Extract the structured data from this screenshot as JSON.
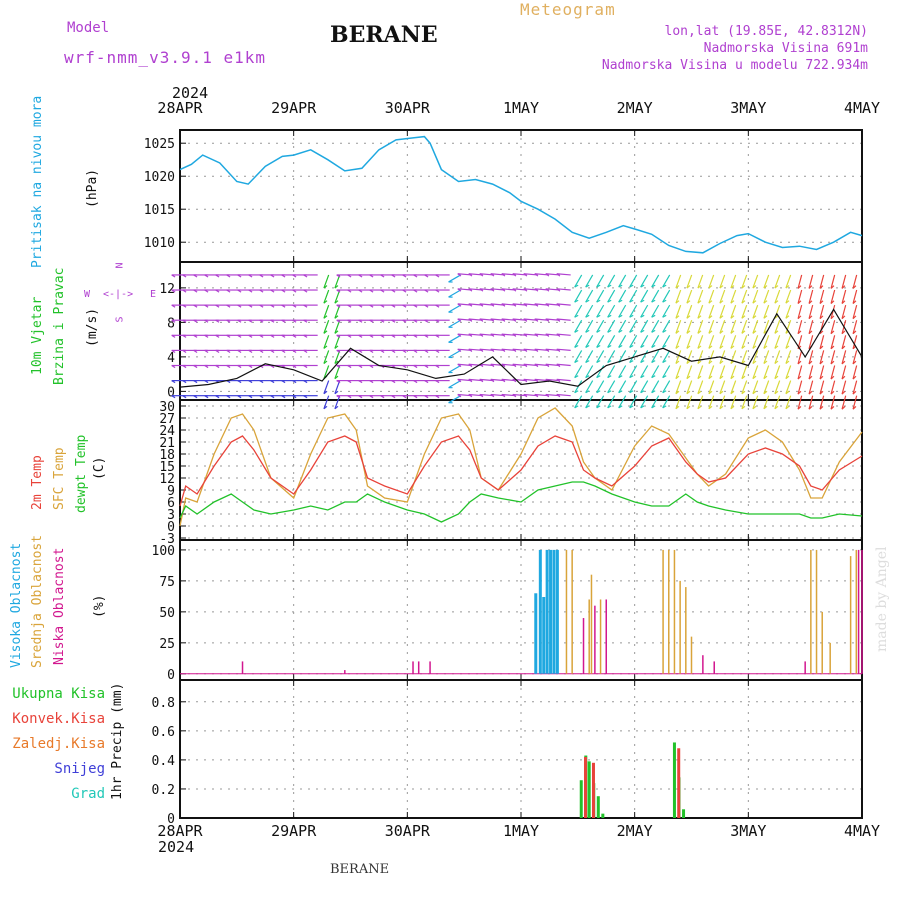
{
  "header": {
    "model_label": "Model",
    "model_name": "wrf-nmm_v3.9.1 e1km",
    "station": "BERANE",
    "meteogram": "Meteogram",
    "lonlat": "lon,lat (19.85E, 42.8312N)",
    "elevation": "Nadmorska Visina 691m",
    "model_elevation": "Nadmorska Visina u modelu 722.934m",
    "year": "2024",
    "footer_station": "BERANE",
    "watermark": "made by Angel"
  },
  "colors": {
    "pressure": "#1fa8e0",
    "temp2m": "#e8433a",
    "sfc": "#d9a43a",
    "dewpt": "#22c22a",
    "high": "#1fa8e0",
    "mid": "#d9a43a",
    "low": "#d2178f",
    "total": "#22c22a",
    "conv": "#e8433a",
    "frozen": "#e87a2a",
    "snow": "#4040d8",
    "grad": "#22c8b8",
    "purple": "#b040d0"
  },
  "time_axis": {
    "labels": [
      "28APR",
      "29APR",
      "30APR",
      "1MAY",
      "2MAY",
      "3MAY",
      "4MAY"
    ],
    "year": "2024"
  },
  "panels": {
    "pressure": {
      "title": "Pritisak na nivou mora",
      "unit": "(hPa)",
      "ticks": [
        "1025",
        "1020",
        "1015",
        "1010"
      ]
    },
    "wind": {
      "title1": "10m Vjetar",
      "title2": "Brzina i Pravac",
      "unit": "(m/s)",
      "ticks": [
        "12",
        "8",
        "4",
        "0"
      ],
      "compass_n": "N",
      "compass_s": "S",
      "compass_w": "W",
      "compass_e": "E",
      "compass_arrows": "<-|->"
    },
    "temp": {
      "t1": "2m Temp",
      "t2": "SFC Temp",
      "t3": "dewpt Temp",
      "unit": "(C)",
      "ticks": [
        "30",
        "27",
        "24",
        "21",
        "18",
        "15",
        "12",
        "9",
        "6",
        "3",
        "0",
        "-3"
      ]
    },
    "cloud": {
      "t1": "Visoka Oblacnost",
      "t2": "Srednja Oblacnost",
      "t3": "Niska Oblacnost",
      "unit": "(%)",
      "ticks": [
        "100",
        "75",
        "50",
        "25",
        "0"
      ]
    },
    "precip": {
      "unit": "1hr Precip (mm)",
      "ticks": [
        "0.8",
        "0.6",
        "0.4",
        "0.2",
        "0"
      ],
      "legend": [
        "Ukupna Kisa",
        "Konvek.Kisa",
        "Zaledj.Kisa",
        "Snijeg",
        "Grad"
      ]
    }
  },
  "chart_data": [
    {
      "type": "line",
      "title": "Pritisak na nivou mora",
      "ylabel": "(hPa)",
      "ylim": [
        1007,
        1027
      ],
      "x_days": [
        0,
        0.1,
        0.2,
        0.35,
        0.5,
        0.6,
        0.75,
        0.9,
        1.0,
        1.15,
        1.3,
        1.45,
        1.6,
        1.75,
        1.9,
        2.05,
        2.15,
        2.2,
        2.3,
        2.45,
        2.6,
        2.75,
        2.9,
        3.0,
        3.15,
        3.3,
        3.45,
        3.6,
        3.75,
        3.9,
        4.0,
        4.15,
        4.3,
        4.45,
        4.6,
        4.75,
        4.9,
        5.0,
        5.15,
        5.3,
        5.45,
        5.6,
        5.75,
        5.9,
        6.0
      ],
      "series": [
        {
          "values": [
            1021,
            1021.8,
            1023.2,
            1022,
            1019.2,
            1018.8,
            1021.5,
            1023,
            1023.2,
            1024,
            1022.5,
            1020.8,
            1021.2,
            1024,
            1025.5,
            1025.8,
            1026,
            1025,
            1021,
            1019.2,
            1019.5,
            1018.8,
            1017.5,
            1016.2,
            1015,
            1013.5,
            1011.5,
            1010.6,
            1011.5,
            1012.5,
            1012,
            1011.2,
            1009.5,
            1008.6,
            1008.4,
            1009.8,
            1011,
            1011.3,
            1010,
            1009.2,
            1009.4,
            1008.9,
            1010,
            1011.5,
            1011
          ]
        }
      ]
    },
    {
      "type": "line",
      "title": "10m Vjetar Brzina i Pravac",
      "ylabel": "(m/s)",
      "ylim": [
        -1,
        15
      ],
      "x_days": [
        0,
        0.25,
        0.5,
        0.75,
        1.0,
        1.25,
        1.5,
        1.75,
        2.0,
        2.25,
        2.5,
        2.75,
        3.0,
        3.25,
        3.5,
        3.75,
        4.0,
        4.25,
        4.5,
        4.75,
        5.0,
        5.25,
        5.5,
        5.75,
        6.0
      ],
      "series": [
        {
          "values": [
            0.5,
            0.8,
            1.5,
            3.2,
            2.5,
            1.2,
            5,
            3,
            2.5,
            1.5,
            2,
            4,
            0.8,
            1.2,
            0.6,
            3,
            4,
            5,
            3.5,
            4,
            3,
            9,
            4,
            9.5,
            4
          ]
        }
      ]
    },
    {
      "type": "line",
      "title": "2m Temp / SFC Temp / dewpt Temp",
      "ylabel": "(C)",
      "ylim": [
        -3,
        31
      ],
      "x_days": [
        0,
        0.05,
        0.15,
        0.3,
        0.45,
        0.55,
        0.65,
        0.8,
        1.0,
        1.15,
        1.3,
        1.45,
        1.55,
        1.65,
        1.8,
        2.0,
        2.15,
        2.3,
        2.45,
        2.55,
        2.65,
        2.8,
        3.0,
        3.15,
        3.3,
        3.45,
        3.55,
        3.65,
        3.8,
        4.0,
        4.15,
        4.3,
        4.45,
        4.55,
        4.65,
        4.8,
        5.0,
        5.15,
        5.3,
        5.45,
        5.55,
        5.65,
        5.8,
        6.0
      ],
      "series": [
        {
          "name": "2m Temp",
          "values": [
            5,
            10,
            8,
            15,
            21,
            22.5,
            19,
            12,
            8,
            14,
            21,
            22.5,
            21,
            12,
            10,
            8,
            15,
            21,
            22.5,
            19,
            12,
            9,
            14,
            20,
            22.5,
            21,
            14,
            12,
            10,
            15,
            20,
            22,
            16,
            13,
            11,
            12,
            18,
            19.5,
            18,
            15,
            10,
            9,
            14,
            17.5
          ]
        },
        {
          "name": "SFC Temp",
          "values": [
            0,
            7,
            6,
            18,
            27,
            28,
            24,
            12,
            7,
            18,
            27,
            28,
            24,
            10,
            7,
            6,
            18,
            27,
            28,
            24,
            12,
            9,
            18,
            27,
            29.5,
            25,
            16,
            12,
            9,
            20,
            25,
            23,
            17,
            13,
            10,
            13,
            22,
            24,
            21,
            14,
            7,
            7,
            16,
            23.5
          ]
        },
        {
          "name": "dewpt Temp",
          "values": [
            2,
            5,
            3,
            6,
            8,
            6,
            4,
            3,
            4,
            5,
            4,
            6,
            6,
            8,
            6,
            4,
            3,
            1,
            3,
            6,
            8,
            7,
            6,
            9,
            10,
            11,
            11,
            10,
            8,
            6,
            5,
            5,
            8,
            6,
            5,
            4,
            3,
            3,
            3,
            3,
            2,
            2,
            3,
            2.5
          ]
        }
      ]
    },
    {
      "type": "bar",
      "title": "Visoka / Srednja / Niska Oblacnost",
      "ylabel": "(%)",
      "ylim": [
        0,
        100
      ],
      "series": [
        {
          "name": "Visoka Oblacnost",
          "x_days": [
            3.13,
            3.17,
            3.2,
            3.23,
            3.26,
            3.29,
            3.32
          ],
          "values": [
            65,
            100,
            62,
            100,
            100,
            100,
            100
          ]
        },
        {
          "name": "Srednja Oblacnost",
          "x_days": [
            3.4,
            3.45,
            3.6,
            3.62,
            3.7,
            4.25,
            4.3,
            4.35,
            4.4,
            4.45,
            4.5,
            5.55,
            5.6,
            5.65,
            5.72,
            5.9,
            5.95
          ],
          "values": [
            100,
            100,
            60,
            80,
            60,
            100,
            100,
            100,
            75,
            70,
            30,
            100,
            100,
            50,
            25,
            95,
            100
          ]
        },
        {
          "name": "Niska Oblacnost",
          "x_days": [
            0.55,
            1.45,
            2.05,
            2.1,
            2.2,
            3.55,
            3.65,
            3.75,
            4.6,
            4.7,
            5.5,
            5.97,
            6.0
          ],
          "values": [
            10,
            3,
            10,
            10,
            10,
            45,
            55,
            60,
            15,
            10,
            10,
            100,
            100
          ]
        }
      ]
    },
    {
      "type": "bar",
      "title": "1hr Precip",
      "ylabel": "1hr Precip (mm)",
      "ylim": [
        0,
        0.9
      ],
      "series": [
        {
          "name": "Ukupna Kisa",
          "x_days": [
            3.53,
            3.57,
            3.6,
            3.64,
            3.68,
            3.72,
            4.35,
            4.39,
            4.43
          ],
          "values": [
            0.26,
            0.43,
            0.39,
            0.24,
            0.15,
            0.03,
            0.52,
            0.28,
            0.06
          ]
        },
        {
          "name": "Konvek.Kisa",
          "x_days": [
            3.55,
            3.62,
            4.37
          ],
          "values": [
            0.42,
            0.38,
            0.48
          ]
        }
      ]
    }
  ]
}
